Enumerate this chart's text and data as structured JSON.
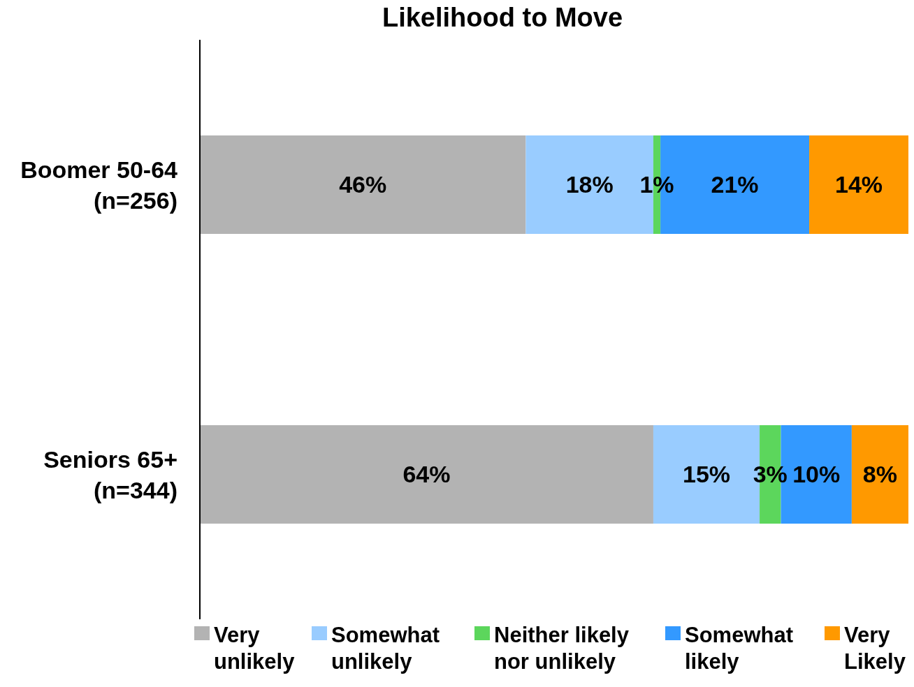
{
  "chart_data": {
    "type": "bar",
    "title": "Likelihood to Move",
    "orientation": "horizontal",
    "stacked": true,
    "categories": [
      "Boomer 50-64 (n=256)",
      "Seniors 65+ (n=344)"
    ],
    "xlim": [
      0,
      100
    ],
    "tick_labels": "y",
    "legend": "bottom",
    "grid": false,
    "series": [
      {
        "name": "Very unlikely",
        "color": "#b3b3b3",
        "values": [
          46,
          64
        ],
        "value_labels": [
          "46%",
          "64%"
        ]
      },
      {
        "name": "Somewhat unlikely",
        "color": "#99ccff",
        "values": [
          18,
          15
        ],
        "value_labels": [
          "18%",
          "15%"
        ]
      },
      {
        "name": "Neither likely nor unlikely",
        "color": "#5cd65c",
        "values": [
          1,
          3
        ],
        "value_labels": [
          "1%",
          "3%"
        ]
      },
      {
        "name": "Somewhat likely",
        "color": "#3399ff",
        "values": [
          21,
          10
        ],
        "value_labels": [
          "21%",
          "10%"
        ]
      },
      {
        "name": "Very Likely",
        "color": "#ff9900",
        "values": [
          14,
          8
        ],
        "value_labels": [
          "14%",
          "8%"
        ]
      }
    ]
  }
}
